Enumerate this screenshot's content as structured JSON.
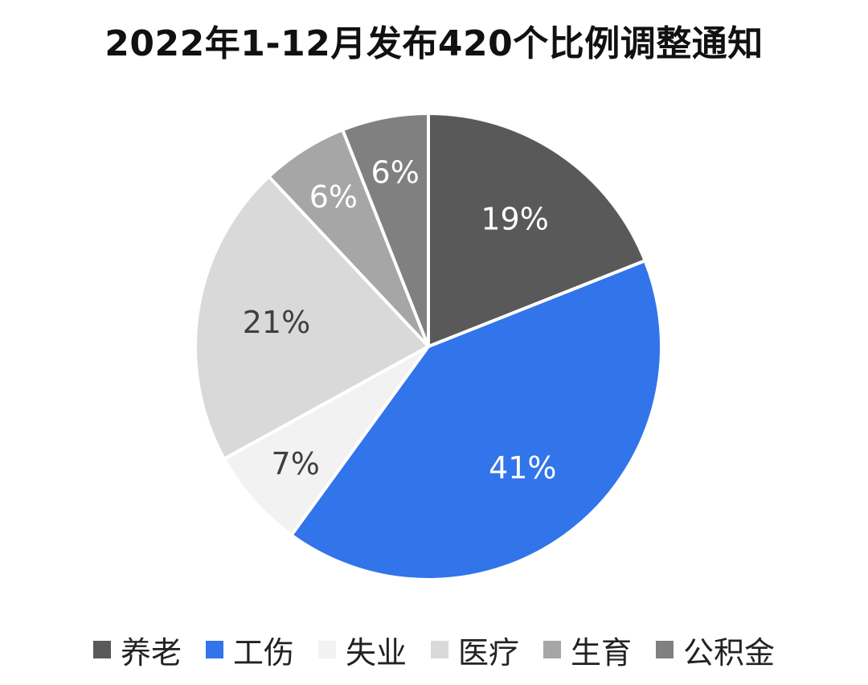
{
  "chart_data": {
    "type": "pie",
    "title": "2022年1-12月发布420个比例调整通知",
    "slices": [
      {
        "label": "养老",
        "value": 19,
        "display": "19%",
        "color": "#595959",
        "text_color": "#ffffff"
      },
      {
        "label": "工伤",
        "value": 41,
        "display": "41%",
        "color": "#3274EA",
        "text_color": "#ffffff"
      },
      {
        "label": "失业",
        "value": 7,
        "display": "7%",
        "color": "#F2F2F2",
        "text_color": "#404040"
      },
      {
        "label": "医疗",
        "value": 21,
        "display": "21%",
        "color": "#D9D9D9",
        "text_color": "#404040"
      },
      {
        "label": "生育",
        "value": 6,
        "display": "6%",
        "color": "#A6A6A6",
        "text_color": "#ffffff"
      },
      {
        "label": "公积金",
        "value": 6,
        "display": "6%",
        "color": "#808080",
        "text_color": "#ffffff"
      }
    ],
    "legend_position": "bottom"
  }
}
